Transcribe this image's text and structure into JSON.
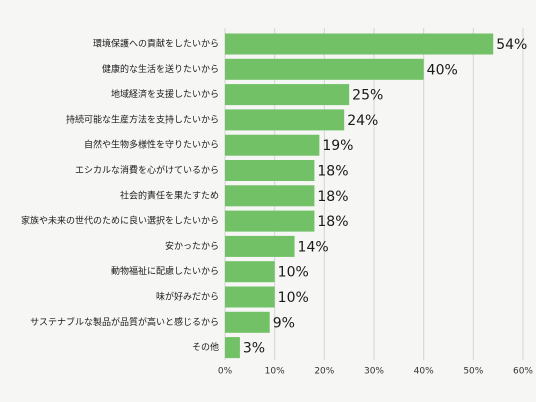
{
  "chart_data": {
    "type": "bar",
    "orientation": "horizontal",
    "title": "",
    "xlabel": "",
    "ylabel": "",
    "categories": [
      "環境保護への貢献をしたいから",
      "健康的な生活を送りたいから",
      "地域経済を支援したいから",
      "持続可能な生産方法を支持したいから",
      "自然や生物多様性を守りたいから",
      "エシカルな消費を心がけているから",
      "社会的責任を果たすため",
      "家族や未来の世代のために良い選択をしたいから",
      "安かったから",
      "動物福祉に配慮したいから",
      "味が好みだから",
      "サステナブルな製品が品質が高いと感じるから",
      "その他"
    ],
    "values": [
      54,
      40,
      25,
      24,
      19,
      18,
      18,
      18,
      14,
      10,
      10,
      9,
      3
    ],
    "value_labels": [
      "54%",
      "40%",
      "25%",
      "24%",
      "19%",
      "18%",
      "18%",
      "18%",
      "14%",
      "10%",
      "10%",
      "9%",
      "3%"
    ],
    "xlim": [
      0,
      60
    ],
    "x_ticks": [
      "0%",
      "10%",
      "20%",
      "30%",
      "40%",
      "50%",
      "60%"
    ],
    "grid": "vertical",
    "legend": "none",
    "bar_color": "#72c166"
  }
}
